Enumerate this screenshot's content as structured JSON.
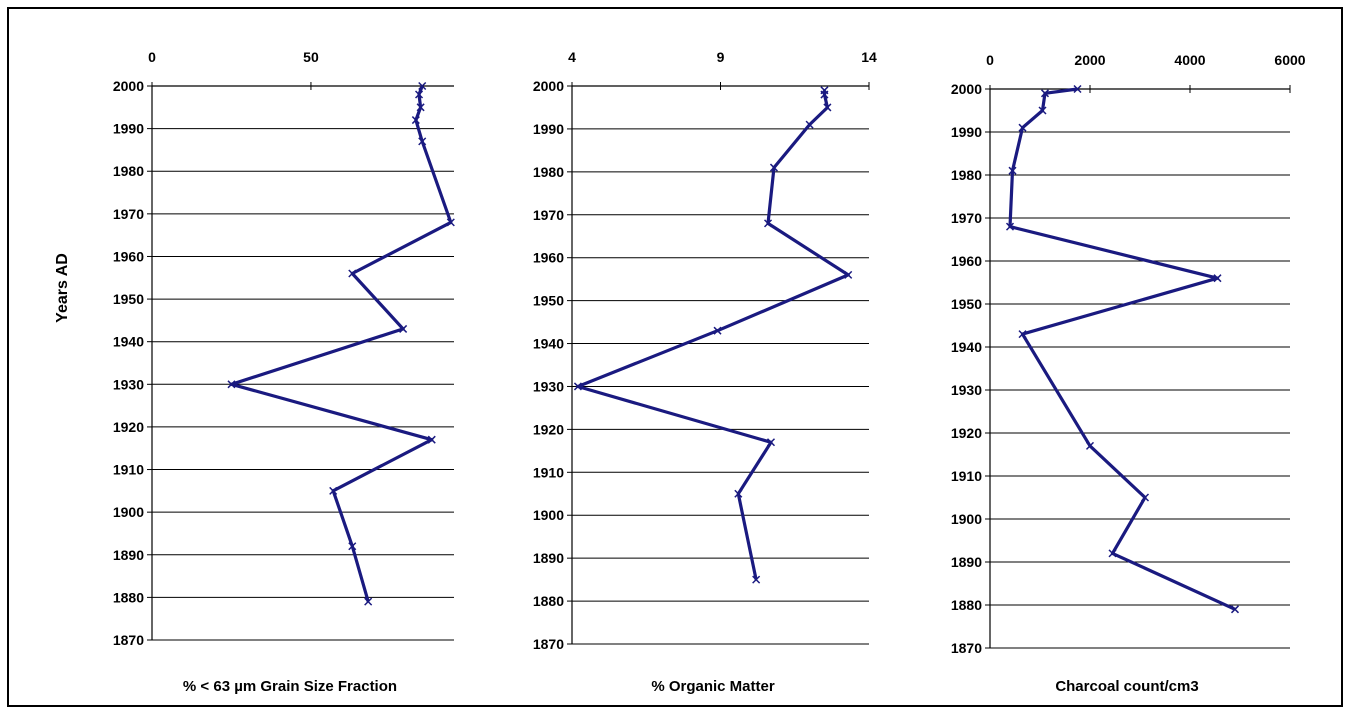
{
  "y_axis_title": "Years AD",
  "chart_data": [
    {
      "type": "line",
      "xlabel": "% < 63 µm Grain Size Fraction",
      "ylabel": "Years AD",
      "xlim": [
        0,
        95
      ],
      "ylim": [
        1870,
        2000
      ],
      "x_ticks": [
        "0",
        "50"
      ],
      "x_tick_values": [
        0,
        50
      ],
      "y_ticks": [
        "2000",
        "1990",
        "1980",
        "1970",
        "1960",
        "1950",
        "1940",
        "1930",
        "1920",
        "1910",
        "1900",
        "1890",
        "1880",
        "1870"
      ],
      "grid": "horizontal",
      "series": [
        {
          "color": "#1a1a80",
          "points": [
            {
              "x": 85,
              "y": 2000
            },
            {
              "x": 84,
              "y": 1998
            },
            {
              "x": 84.5,
              "y": 1995
            },
            {
              "x": 83,
              "y": 1992
            },
            {
              "x": 85,
              "y": 1987
            },
            {
              "x": 94,
              "y": 1968
            },
            {
              "x": 63,
              "y": 1956
            },
            {
              "x": 79,
              "y": 1943
            },
            {
              "x": 25,
              "y": 1930
            },
            {
              "x": 88,
              "y": 1917
            },
            {
              "x": 57,
              "y": 1905
            },
            {
              "x": 63,
              "y": 1892
            },
            {
              "x": 68,
              "y": 1879
            }
          ]
        }
      ]
    },
    {
      "type": "line",
      "xlabel": "% Organic Matter",
      "ylabel": "",
      "xlim": [
        4,
        14
      ],
      "ylim": [
        1870,
        2000
      ],
      "x_ticks": [
        "4",
        "9",
        "14"
      ],
      "x_tick_values": [
        4,
        9,
        14
      ],
      "y_ticks": [
        "2000",
        "1990",
        "1980",
        "1970",
        "1960",
        "1950",
        "1940",
        "1930",
        "1920",
        "1910",
        "1900",
        "1890",
        "1880",
        "1870"
      ],
      "grid": "horizontal",
      "series": [
        {
          "color": "#1a1a80",
          "points": [
            {
              "x": 12.5,
              "y": 1999
            },
            {
              "x": 12.5,
              "y": 1998
            },
            {
              "x": 12.6,
              "y": 1995
            },
            {
              "x": 12.0,
              "y": 1991
            },
            {
              "x": 10.8,
              "y": 1981
            },
            {
              "x": 10.6,
              "y": 1968
            },
            {
              "x": 13.3,
              "y": 1956
            },
            {
              "x": 8.9,
              "y": 1943
            },
            {
              "x": 4.2,
              "y": 1930
            },
            {
              "x": 10.7,
              "y": 1917
            },
            {
              "x": 9.6,
              "y": 1905
            },
            {
              "x": 10.2,
              "y": 1885
            }
          ]
        }
      ]
    },
    {
      "type": "line",
      "xlabel": "Charcoal count/cm3",
      "ylabel": "",
      "xlim": [
        0,
        6000
      ],
      "ylim": [
        1870,
        2000
      ],
      "x_ticks": [
        "0",
        "2000",
        "4000",
        "6000"
      ],
      "x_tick_values": [
        0,
        2000,
        4000,
        6000
      ],
      "y_ticks": [
        "2000",
        "1990",
        "1980",
        "1970",
        "1960",
        "1950",
        "1940",
        "1930",
        "1920",
        "1910",
        "1900",
        "1890",
        "1880",
        "1870"
      ],
      "grid": "horizontal",
      "series": [
        {
          "color": "#1a1a80",
          "points": [
            {
              "x": 1750,
              "y": 2000
            },
            {
              "x": 1100,
              "y": 1999
            },
            {
              "x": 1050,
              "y": 1995
            },
            {
              "x": 650,
              "y": 1991
            },
            {
              "x": 450,
              "y": 1981
            },
            {
              "x": 400,
              "y": 1968
            },
            {
              "x": 4550,
              "y": 1956
            },
            {
              "x": 650,
              "y": 1943
            },
            {
              "x": 2000,
              "y": 1917
            },
            {
              "x": 3100,
              "y": 1905
            },
            {
              "x": 2450,
              "y": 1892
            },
            {
              "x": 4900,
              "y": 1879
            }
          ]
        }
      ]
    }
  ]
}
